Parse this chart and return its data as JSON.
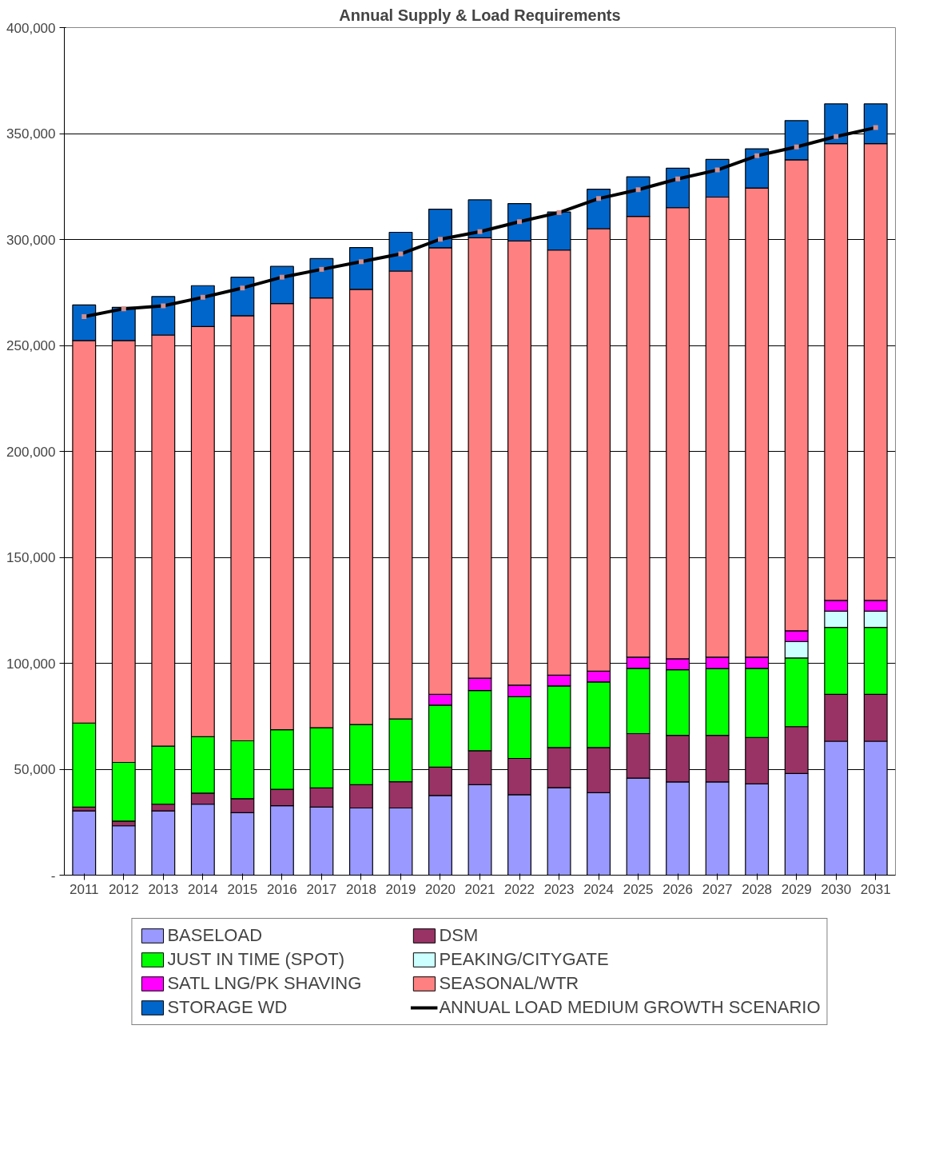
{
  "chart_data": {
    "type": "bar",
    "title": "Annual Supply & Load Requirements",
    "categories": [
      "2011",
      "2012",
      "2013",
      "2014",
      "2015",
      "2016",
      "2017",
      "2018",
      "2019",
      "2020",
      "2021",
      "2022",
      "2023",
      "2024",
      "2025",
      "2026",
      "2027",
      "2028",
      "2029",
      "2030",
      "2031"
    ],
    "stacked": true,
    "series": [
      {
        "name": "BASELOAD",
        "color": "#9999ff",
        "values": [
          30300,
          23300,
          30300,
          33500,
          29500,
          32800,
          32100,
          31700,
          31700,
          37600,
          42700,
          38000,
          41300,
          38900,
          45800,
          44000,
          44000,
          43100,
          48000,
          63200,
          63200
        ]
      },
      {
        "name": "DSM",
        "color": "#993366",
        "values": [
          1800,
          2200,
          3200,
          5200,
          6600,
          7700,
          9100,
          11000,
          12400,
          13400,
          16000,
          17100,
          18900,
          21300,
          21000,
          22000,
          22000,
          21900,
          22100,
          22100,
          22100
        ]
      },
      {
        "name": "JUST IN TIME (SPOT)",
        "color": "#00ff00",
        "values": [
          39700,
          27700,
          27400,
          26600,
          27300,
          28100,
          28400,
          28400,
          29600,
          29200,
          28400,
          29100,
          29100,
          31000,
          30800,
          30900,
          31500,
          32600,
          32400,
          31600,
          31600
        ]
      },
      {
        "name": "PEAKING/CITYGATE",
        "color": "#ccffff",
        "values": [
          null,
          null,
          null,
          null,
          null,
          null,
          null,
          null,
          null,
          null,
          null,
          null,
          null,
          null,
          null,
          null,
          null,
          null,
          7700,
          7700,
          7700
        ]
      },
      {
        "name": "SATL LNG/PK SHAVING",
        "color": "#ff00ff",
        "values": [
          null,
          null,
          null,
          null,
          null,
          null,
          null,
          null,
          null,
          5100,
          5900,
          5500,
          5100,
          5100,
          5300,
          5200,
          5400,
          5300,
          5100,
          5100,
          5100
        ]
      },
      {
        "name": "SEASONAL/WTR",
        "color": "#ff8080",
        "values": [
          180500,
          199100,
          194000,
          193600,
          200600,
          201200,
          202800,
          205400,
          211400,
          210800,
          207800,
          209600,
          200600,
          208800,
          208000,
          212900,
          217100,
          221400,
          222300,
          215500,
          215500
        ]
      },
      {
        "name": "STORAGE WD",
        "color": "#0066cc",
        "values": [
          16800,
          15700,
          18200,
          19300,
          18200,
          17500,
          18600,
          19700,
          18300,
          18200,
          17900,
          17600,
          18000,
          18600,
          18700,
          18600,
          17800,
          18500,
          18500,
          18800,
          18800
        ]
      },
      {
        "name": "ANNUAL LOAD MEDIUM GROWTH SCENARIO",
        "type": "line",
        "color": "#000000",
        "values": [
          263600,
          267300,
          268700,
          272700,
          277100,
          282200,
          285900,
          289500,
          293200,
          300100,
          303700,
          308400,
          312700,
          319300,
          323500,
          328600,
          332800,
          339500,
          343700,
          348600,
          352800
        ]
      }
    ],
    "ylim": [
      0,
      400000
    ],
    "yticks": [
      {
        "value": 0,
        "label": "-"
      },
      {
        "value": 50000,
        "label": "50,000"
      },
      {
        "value": 100000,
        "label": "100,000"
      },
      {
        "value": 150000,
        "label": "150,000"
      },
      {
        "value": 200000,
        "label": "200,000"
      },
      {
        "value": 250000,
        "label": "250,000"
      },
      {
        "value": 300000,
        "label": "300,000"
      },
      {
        "value": 350000,
        "label": "350,000"
      },
      {
        "value": 400000,
        "label": "400,000"
      }
    ],
    "grid": "y",
    "legend": "bottom",
    "marker": "square",
    "line_style": "solid"
  }
}
